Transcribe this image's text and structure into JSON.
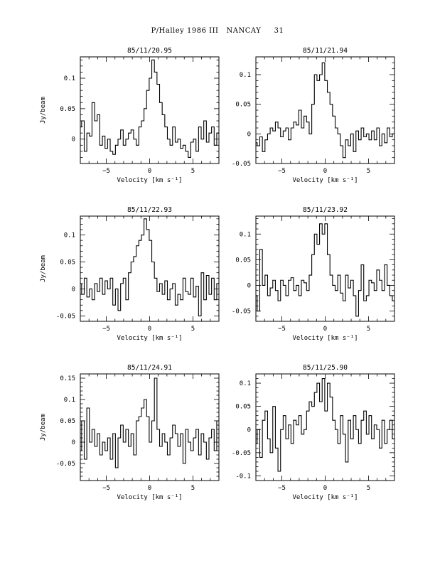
{
  "title": "P/Halley 1986 III   NANCAY     31",
  "chart_data": [
    {
      "type": "line",
      "title": "85/11/20.95",
      "xlabel": "Velocity [km s⁻¹]",
      "ylabel": "Jy/beam",
      "xlim": [
        -8,
        8
      ],
      "ylim": [
        -0.04,
        0.135
      ],
      "xticks": [
        -5,
        0,
        5
      ],
      "yticks": [
        0,
        0.05,
        0.1
      ],
      "ytick_labels": [
        "0",
        "0.05",
        "0.1"
      ],
      "series": [
        {
          "x": [
            -8.0,
            -7.7,
            -7.4,
            -7.1,
            -6.8,
            -6.5,
            -6.2,
            -5.9,
            -5.6,
            -5.3,
            -5.0,
            -4.7,
            -4.4,
            -4.1,
            -3.8,
            -3.5,
            -3.2,
            -2.9,
            -2.6,
            -2.3,
            -2.0,
            -1.7,
            -1.4,
            -1.1,
            -0.8,
            -0.5,
            -0.2,
            0.1,
            0.4,
            0.7,
            1.0,
            1.3,
            1.6,
            1.9,
            2.2,
            2.5,
            2.8,
            3.1,
            3.4,
            3.7,
            4.0,
            4.3,
            4.6,
            4.9,
            5.2,
            5.5,
            5.8,
            6.1,
            6.4,
            6.7,
            7.0,
            7.3,
            7.6,
            7.9
          ],
          "y": [
            0.02,
            0.03,
            -0.02,
            0.01,
            0.005,
            0.06,
            0.03,
            0.04,
            -0.01,
            0.005,
            -0.015,
            0.0,
            -0.02,
            -0.025,
            -0.01,
            0.0,
            0.015,
            -0.01,
            0.0,
            0.01,
            0.015,
            0.0,
            -0.01,
            0.02,
            0.03,
            0.05,
            0.08,
            0.1,
            0.13,
            0.11,
            0.09,
            0.06,
            0.04,
            0.02,
            0.0,
            -0.01,
            0.02,
            -0.005,
            0.0,
            -0.015,
            -0.01,
            -0.02,
            -0.03,
            -0.005,
            0.0,
            -0.02,
            0.02,
            0.0,
            0.03,
            -0.005,
            0.01,
            0.02,
            -0.01,
            0.01
          ]
        }
      ]
    },
    {
      "type": "line",
      "title": "85/11/21.94",
      "xlabel": "Velocity [km s⁻¹]",
      "ylabel": "",
      "xlim": [
        -8,
        8
      ],
      "ylim": [
        -0.05,
        0.13
      ],
      "xticks": [
        -5,
        0,
        5
      ],
      "yticks": [
        -0.05,
        0,
        0.05,
        0.1
      ],
      "ytick_labels": [
        "-0.05",
        "0",
        "0.05",
        "0.1"
      ],
      "series": [
        {
          "x": [
            -8.0,
            -7.7,
            -7.4,
            -7.1,
            -6.8,
            -6.5,
            -6.2,
            -5.9,
            -5.6,
            -5.3,
            -5.0,
            -4.7,
            -4.4,
            -4.1,
            -3.8,
            -3.5,
            -3.2,
            -2.9,
            -2.6,
            -2.3,
            -2.0,
            -1.7,
            -1.4,
            -1.1,
            -0.8,
            -0.5,
            -0.2,
            0.1,
            0.4,
            0.7,
            1.0,
            1.3,
            1.6,
            1.9,
            2.2,
            2.5,
            2.8,
            3.1,
            3.4,
            3.7,
            4.0,
            4.3,
            4.6,
            4.9,
            5.2,
            5.5,
            5.8,
            6.1,
            6.4,
            6.7,
            7.0,
            7.3,
            7.6,
            7.9
          ],
          "y": [
            -0.015,
            -0.02,
            -0.005,
            -0.03,
            -0.01,
            0.0,
            0.01,
            0.005,
            0.02,
            0.01,
            -0.005,
            0.005,
            0.01,
            -0.01,
            0.01,
            0.02,
            0.015,
            0.04,
            0.01,
            0.03,
            0.02,
            0.0,
            0.05,
            0.1,
            0.09,
            0.1,
            0.12,
            0.09,
            0.07,
            0.05,
            0.03,
            0.01,
            0.0,
            -0.02,
            -0.04,
            -0.01,
            -0.02,
            0.0,
            -0.03,
            0.005,
            -0.01,
            0.01,
            -0.005,
            0.0,
            -0.01,
            0.005,
            -0.01,
            0.01,
            -0.02,
            0.0,
            -0.015,
            0.01,
            -0.005,
            0.0
          ]
        }
      ]
    },
    {
      "type": "line",
      "title": "85/11/22.93",
      "xlabel": "Velocity [km s⁻¹]",
      "ylabel": "Jy/beam",
      "xlim": [
        -8,
        8
      ],
      "ylim": [
        -0.06,
        0.135
      ],
      "xticks": [
        -5,
        0,
        5
      ],
      "yticks": [
        -0.05,
        0,
        0.05,
        0.1
      ],
      "ytick_labels": [
        "-0.05",
        "0",
        "0.05",
        "0.1"
      ],
      "series": [
        {
          "x": [
            -8.0,
            -7.7,
            -7.4,
            -7.1,
            -6.8,
            -6.5,
            -6.2,
            -5.9,
            -5.6,
            -5.3,
            -5.0,
            -4.7,
            -4.4,
            -4.1,
            -3.8,
            -3.5,
            -3.2,
            -2.9,
            -2.6,
            -2.3,
            -2.0,
            -1.7,
            -1.4,
            -1.1,
            -0.8,
            -0.5,
            -0.2,
            0.1,
            0.4,
            0.7,
            1.0,
            1.3,
            1.6,
            1.9,
            2.2,
            2.5,
            2.8,
            3.1,
            3.4,
            3.7,
            4.0,
            4.3,
            4.6,
            4.9,
            5.2,
            5.5,
            5.8,
            6.1,
            6.4,
            6.7,
            7.0,
            7.3,
            7.6,
            7.9
          ],
          "y": [
            0.01,
            -0.01,
            0.02,
            -0.015,
            0.0,
            -0.02,
            0.01,
            -0.005,
            0.02,
            -0.01,
            0.015,
            0.0,
            0.02,
            -0.03,
            0.0,
            -0.04,
            0.01,
            0.02,
            -0.02,
            0.03,
            0.05,
            0.06,
            0.08,
            0.09,
            0.1,
            0.13,
            0.11,
            0.09,
            0.05,
            0.02,
            -0.005,
            0.01,
            -0.01,
            0.015,
            -0.02,
            0.0,
            0.01,
            -0.03,
            -0.01,
            -0.02,
            0.02,
            -0.005,
            -0.01,
            0.02,
            -0.015,
            0.005,
            -0.05,
            0.03,
            -0.02,
            0.025,
            -0.01,
            0.02,
            -0.02,
            0.01
          ]
        }
      ]
    },
    {
      "type": "line",
      "title": "85/11/23.92",
      "xlabel": "Velocity [km s⁻¹]",
      "ylabel": "",
      "xlim": [
        -8,
        8
      ],
      "ylim": [
        -0.07,
        0.135
      ],
      "xticks": [
        -5,
        0,
        5
      ],
      "yticks": [
        -0.05,
        0,
        0.05,
        0.1
      ],
      "ytick_labels": [
        "-0.05",
        "0",
        "0.05",
        "0.1"
      ],
      "series": [
        {
          "x": [
            -8.0,
            -7.7,
            -7.4,
            -7.1,
            -6.8,
            -6.5,
            -6.2,
            -5.9,
            -5.6,
            -5.3,
            -5.0,
            -4.7,
            -4.4,
            -4.1,
            -3.8,
            -3.5,
            -3.2,
            -2.9,
            -2.6,
            -2.3,
            -2.0,
            -1.7,
            -1.4,
            -1.1,
            -0.8,
            -0.5,
            -0.2,
            0.1,
            0.4,
            0.7,
            1.0,
            1.3,
            1.6,
            1.9,
            2.2,
            2.5,
            2.8,
            3.1,
            3.4,
            3.7,
            4.0,
            4.3,
            4.6,
            4.9,
            5.2,
            5.5,
            5.8,
            6.1,
            6.4,
            6.7,
            7.0,
            7.3,
            7.6,
            7.9
          ],
          "y": [
            -0.02,
            -0.05,
            0.07,
            0.0,
            0.02,
            -0.02,
            -0.005,
            0.01,
            -0.01,
            -0.03,
            0.01,
            0.0,
            -0.02,
            0.01,
            0.015,
            -0.01,
            0.0,
            -0.02,
            0.01,
            0.005,
            -0.01,
            0.02,
            0.06,
            0.1,
            0.08,
            0.12,
            0.1,
            0.12,
            0.06,
            0.02,
            0.0,
            -0.01,
            0.02,
            -0.015,
            -0.03,
            0.02,
            -0.005,
            0.01,
            -0.02,
            -0.06,
            -0.01,
            0.04,
            -0.03,
            -0.02,
            0.01,
            0.005,
            -0.01,
            0.03,
            0.01,
            -0.01,
            0.04,
            0.0,
            -0.02,
            -0.03
          ]
        }
      ]
    },
    {
      "type": "line",
      "title": "85/11/24.91",
      "xlabel": "Velocity [km s⁻¹]",
      "ylabel": "Jy/beam",
      "xlim": [
        -8,
        8
      ],
      "ylim": [
        -0.09,
        0.16
      ],
      "xticks": [
        -5,
        0,
        5
      ],
      "yticks": [
        -0.05,
        0,
        0.05,
        0.1,
        0.15
      ],
      "ytick_labels": [
        "-0.05",
        "0",
        "0.05",
        "0.1",
        "0.15"
      ],
      "series": [
        {
          "x": [
            -8.0,
            -7.7,
            -7.4,
            -7.1,
            -6.8,
            -6.5,
            -6.2,
            -5.9,
            -5.6,
            -5.3,
            -5.0,
            -4.7,
            -4.4,
            -4.1,
            -3.8,
            -3.5,
            -3.2,
            -2.9,
            -2.6,
            -2.3,
            -2.0,
            -1.7,
            -1.4,
            -1.1,
            -0.8,
            -0.5,
            -0.2,
            0.1,
            0.4,
            0.7,
            1.0,
            1.3,
            1.6,
            1.9,
            2.2,
            2.5,
            2.8,
            3.1,
            3.4,
            3.7,
            4.0,
            4.3,
            4.6,
            4.9,
            5.2,
            5.5,
            5.8,
            6.1,
            6.4,
            6.7,
            7.0,
            7.3,
            7.6,
            7.9
          ],
          "y": [
            -0.02,
            0.05,
            -0.04,
            0.08,
            0.0,
            0.03,
            -0.01,
            0.02,
            -0.03,
            0.0,
            -0.02,
            0.01,
            -0.04,
            0.02,
            -0.06,
            0.01,
            0.04,
            0.0,
            0.03,
            -0.01,
            0.02,
            -0.03,
            0.05,
            0.06,
            0.08,
            0.1,
            0.06,
            0.0,
            0.05,
            0.15,
            0.03,
            -0.01,
            0.02,
            0.0,
            -0.03,
            0.01,
            0.04,
            0.02,
            -0.01,
            0.02,
            -0.05,
            0.03,
            0.0,
            -0.02,
            0.01,
            0.03,
            -0.03,
            0.02,
            0.0,
            -0.04,
            0.01,
            0.03,
            -0.02,
            0.05
          ]
        }
      ]
    },
    {
      "type": "line",
      "title": "85/11/25.90",
      "xlabel": "Velocity [km s⁻¹]",
      "ylabel": "",
      "xlim": [
        -8,
        8
      ],
      "ylim": [
        -0.11,
        0.12
      ],
      "xticks": [
        -5,
        0,
        5
      ],
      "yticks": [
        -0.1,
        -0.05,
        0,
        0.05,
        0.1
      ],
      "ytick_labels": [
        "-0.1",
        "-0.05",
        "0",
        "0.05",
        "0.1"
      ],
      "series": [
        {
          "x": [
            -8.0,
            -7.7,
            -7.4,
            -7.1,
            -6.8,
            -6.5,
            -6.2,
            -5.9,
            -5.6,
            -5.3,
            -5.0,
            -4.7,
            -4.4,
            -4.1,
            -3.8,
            -3.5,
            -3.2,
            -2.9,
            -2.6,
            -2.3,
            -2.0,
            -1.7,
            -1.4,
            -1.1,
            -0.8,
            -0.5,
            -0.2,
            0.1,
            0.4,
            0.7,
            1.0,
            1.3,
            1.6,
            1.9,
            2.2,
            2.5,
            2.8,
            3.1,
            3.4,
            3.7,
            4.0,
            4.3,
            4.6,
            4.9,
            5.2,
            5.5,
            5.8,
            6.1,
            6.4,
            6.7,
            7.0,
            7.3,
            7.6,
            7.9
          ],
          "y": [
            -0.03,
            0.0,
            -0.06,
            0.02,
            0.04,
            -0.02,
            -0.05,
            0.05,
            -0.04,
            -0.09,
            0.0,
            0.03,
            -0.02,
            0.01,
            -0.03,
            0.02,
            0.01,
            0.03,
            -0.01,
            0.0,
            0.04,
            0.06,
            0.05,
            0.08,
            0.1,
            0.06,
            0.11,
            0.04,
            0.1,
            0.07,
            0.02,
            0.0,
            -0.03,
            0.03,
            -0.01,
            -0.07,
            0.02,
            -0.02,
            0.03,
            0.0,
            -0.03,
            0.02,
            0.04,
            -0.01,
            0.03,
            -0.02,
            0.01,
            0.0,
            -0.04,
            0.02,
            -0.03,
            0.0,
            0.02,
            -0.02
          ]
        }
      ]
    }
  ]
}
